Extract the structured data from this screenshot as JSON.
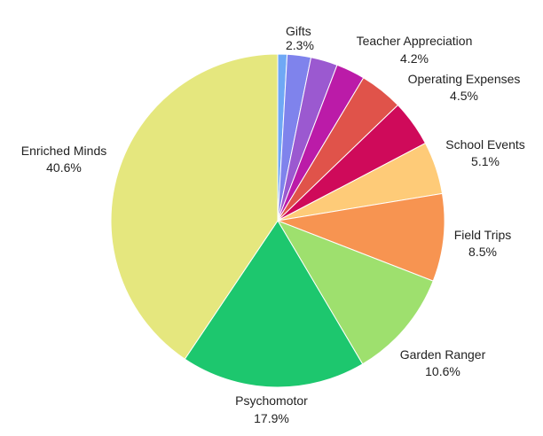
{
  "chart_data": {
    "type": "pie",
    "start_angle_deg": 90,
    "direction": "clockwise",
    "slices": [
      {
        "label": "",
        "value": 0.9,
        "display": "",
        "color": "#6fa8f5"
      },
      {
        "label": "Gifts",
        "value": 2.3,
        "display": "2.3%",
        "color": "#7f83ec"
      },
      {
        "label": "",
        "value": 2.6,
        "display": "",
        "color": "#9b59d0"
      },
      {
        "label": "",
        "value": 2.8,
        "display": "",
        "color": "#bb1ba8"
      },
      {
        "label": "Teacher Appreciation",
        "value": 4.2,
        "display": "4.2%",
        "color": "#e0534a"
      },
      {
        "label": "Operating Expenses",
        "value": 4.5,
        "display": "4.5%",
        "color": "#cf0a5a"
      },
      {
        "label": "School Events",
        "value": 5.1,
        "display": "5.1%",
        "color": "#fecb78"
      },
      {
        "label": "Field Trips",
        "value": 8.5,
        "display": "8.5%",
        "color": "#f79451"
      },
      {
        "label": "Garden Ranger",
        "value": 10.6,
        "display": "10.6%",
        "color": "#9ee06e"
      },
      {
        "label": "Psychomotor",
        "value": 17.9,
        "display": "17.9%",
        "color": "#1dc76e"
      },
      {
        "label": "Enriched Minds",
        "value": 40.6,
        "display": "40.6%",
        "color": "#e5e77e"
      }
    ]
  }
}
